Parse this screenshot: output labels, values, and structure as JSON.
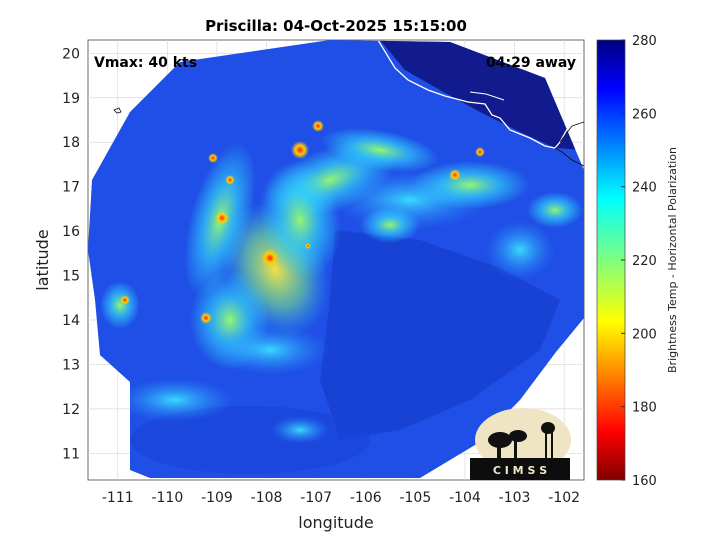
{
  "title": "Priscilla: 04-Oct-2025 15:15:00",
  "vmax_label": "Vmax: 40 kts",
  "away_label": "04:29 away",
  "xlabel": "longitude",
  "ylabel": "latitude",
  "xticks": [
    "-111",
    "-110",
    "-109",
    "-108",
    "-107",
    "-106",
    "-105",
    "-104",
    "-103",
    "-102"
  ],
  "yticks": [
    "11",
    "12",
    "13",
    "14",
    "15",
    "16",
    "17",
    "18",
    "19",
    "20"
  ],
  "colorbar": {
    "label": "Brightness Temp - Horizontal Polarization",
    "ticks": [
      "160",
      "180",
      "200",
      "220",
      "240",
      "260",
      "280"
    ],
    "range": [
      160,
      280
    ]
  },
  "logo_text": "C I M S S",
  "colors": {
    "ocean_background": "#1f4fe6",
    "land_background": "#101a8c",
    "coastline": "#ffffff"
  },
  "map_extent": {
    "lon": [
      -111.6,
      -101.6
    ],
    "lat": [
      10.4,
      20.3
    ]
  }
}
